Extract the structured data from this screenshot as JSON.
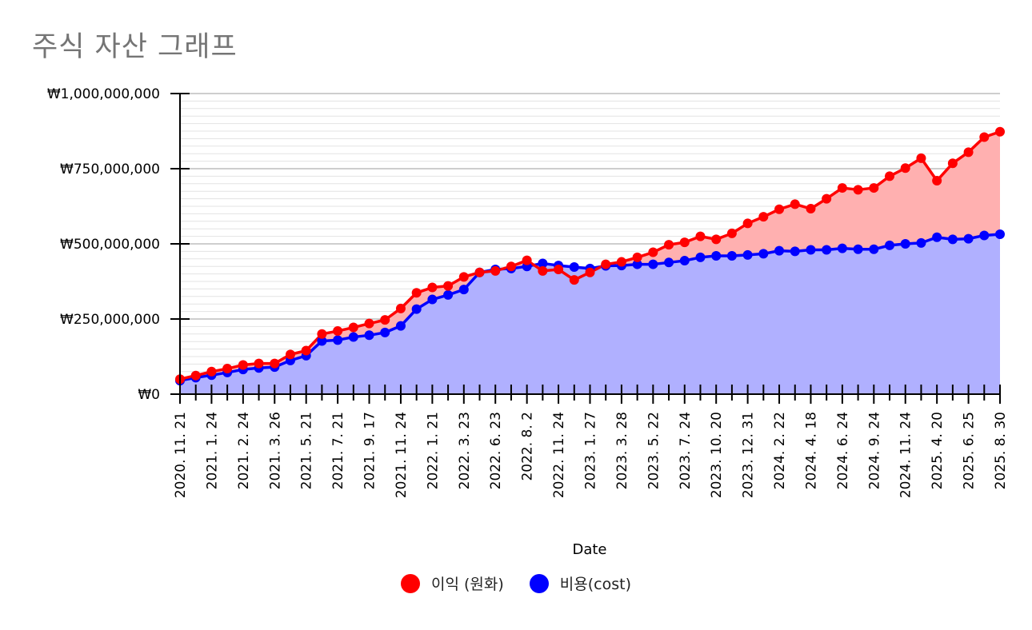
{
  "title": "주식 자산 그래프",
  "chart_data": {
    "type": "area",
    "title": "주식 자산 그래프",
    "xlabel": "Date",
    "ylabel": "",
    "ylim": [
      0,
      1000000000
    ],
    "y_ticks": [
      {
        "value": 0,
        "label": "₩0"
      },
      {
        "value": 250000000,
        "label": "₩250,000,000"
      },
      {
        "value": 500000000,
        "label": "₩500,000,000"
      },
      {
        "value": 750000000,
        "label": "₩750,000,000"
      },
      {
        "value": 1000000000,
        "label": "₩1,000,000,000"
      }
    ],
    "x_tick_labels": [
      {
        "index": 0,
        "label": "2020. 11. 21"
      },
      {
        "index": 2,
        "label": "2021. 1. 24"
      },
      {
        "index": 4,
        "label": "2021. 2. 24"
      },
      {
        "index": 6,
        "label": "2021. 3. 26"
      },
      {
        "index": 8,
        "label": "2021. 5. 21"
      },
      {
        "index": 10,
        "label": "2021. 7. 21"
      },
      {
        "index": 12,
        "label": "2021. 9. 17"
      },
      {
        "index": 14,
        "label": "2021. 11. 24"
      },
      {
        "index": 16,
        "label": "2022. 1. 21"
      },
      {
        "index": 18,
        "label": "2022. 3. 23"
      },
      {
        "index": 20,
        "label": "2022. 6. 23"
      },
      {
        "index": 22,
        "label": "2022. 8. 2"
      },
      {
        "index": 24,
        "label": "2022. 11. 24"
      },
      {
        "index": 26,
        "label": "2023. 1. 27"
      },
      {
        "index": 28,
        "label": "2023. 3. 28"
      },
      {
        "index": 30,
        "label": "2023. 5. 22"
      },
      {
        "index": 32,
        "label": "2023. 7. 24"
      },
      {
        "index": 34,
        "label": "2023. 10. 20"
      },
      {
        "index": 36,
        "label": "2023. 12. 31"
      },
      {
        "index": 38,
        "label": "2024. 2. 22"
      },
      {
        "index": 40,
        "label": "2024. 4. 18"
      },
      {
        "index": 42,
        "label": "2024. 6. 24"
      },
      {
        "index": 44,
        "label": "2024. 9. 24"
      },
      {
        "index": 46,
        "label": "2024. 11. 24"
      },
      {
        "index": 48,
        "label": "2025. 4. 20"
      },
      {
        "index": 50,
        "label": "2025. 6. 25"
      },
      {
        "index": 52,
        "label": "2025. 8. 30"
      }
    ],
    "point_count": 53,
    "series": [
      {
        "name": "비용(cost)",
        "color": "#0000ff",
        "fill": "#b0b0ff",
        "values": [
          45000000,
          55000000,
          63000000,
          72000000,
          82000000,
          87000000,
          90000000,
          112000000,
          128000000,
          177000000,
          180000000,
          190000000,
          196000000,
          205000000,
          227000000,
          283000000,
          315000000,
          330000000,
          348000000,
          405000000,
          415000000,
          418000000,
          425000000,
          435000000,
          428000000,
          423000000,
          418000000,
          427000000,
          428000000,
          432000000,
          432000000,
          438000000,
          444000000,
          455000000,
          460000000,
          460000000,
          463000000,
          467000000,
          477000000,
          475000000,
          480000000,
          480000000,
          485000000,
          482000000,
          482000000,
          495000000,
          500000000,
          503000000,
          522000000,
          515000000,
          517000000,
          528000000,
          532000000
        ]
      },
      {
        "name": "이익 (원화)",
        "color": "#ff0000",
        "fill": "#ffb0b0",
        "values": [
          50000000,
          62000000,
          75000000,
          85000000,
          97000000,
          102000000,
          102000000,
          132000000,
          145000000,
          200000000,
          210000000,
          222000000,
          235000000,
          247000000,
          285000000,
          337000000,
          355000000,
          360000000,
          390000000,
          405000000,
          410000000,
          425000000,
          445000000,
          410000000,
          415000000,
          380000000,
          405000000,
          432000000,
          440000000,
          455000000,
          472000000,
          497000000,
          505000000,
          525000000,
          515000000,
          535000000,
          568000000,
          590000000,
          615000000,
          632000000,
          617000000,
          650000000,
          686000000,
          680000000,
          686000000,
          725000000,
          752000000,
          785000000,
          710000000,
          768000000,
          805000000,
          855000000,
          873000000
        ]
      }
    ],
    "legend": [
      {
        "label": "이익 (원화)",
        "color": "#ff0000"
      },
      {
        "label": "비용(cost)",
        "color": "#0000ff"
      }
    ],
    "legend_position": "bottom"
  }
}
